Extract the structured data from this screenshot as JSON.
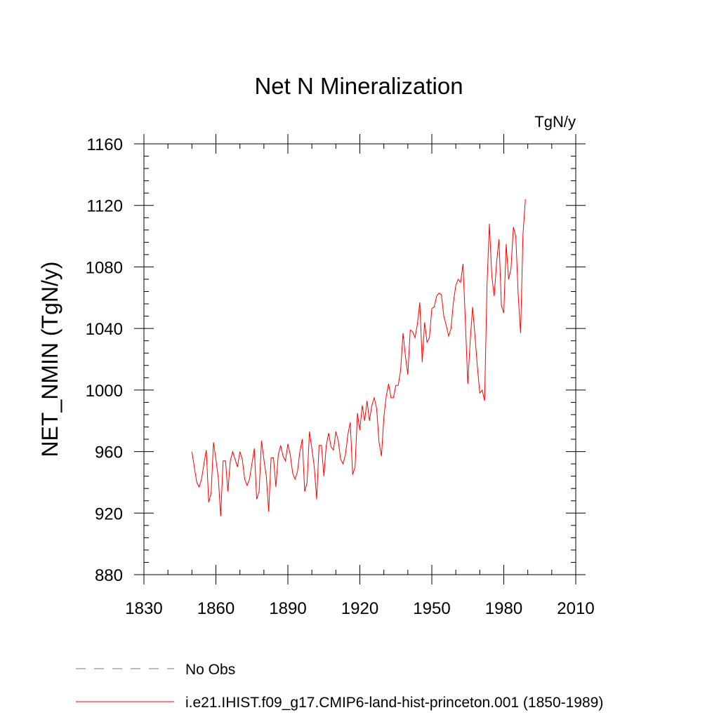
{
  "chart_data": {
    "type": "line",
    "title": "Net N Mineralization",
    "units_label": "TgN/y",
    "xlabel": "",
    "ylabel": "NET_NMIN  (TgN/y)",
    "xlim": [
      1830,
      2010
    ],
    "ylim": [
      880,
      1160
    ],
    "x_ticks": [
      1830,
      1860,
      1890,
      1920,
      1950,
      1980,
      2010
    ],
    "y_ticks": [
      880,
      920,
      960,
      1000,
      1040,
      1080,
      1120,
      1160
    ],
    "x_minor_step": 10,
    "y_minor_step": 8,
    "grid": false,
    "legend_position": "bottom-left",
    "series": [
      {
        "name": "No Obs",
        "color": "#7f6fb0",
        "style": "dashed",
        "x": [],
        "values": []
      },
      {
        "name": "i.e21.IHIST.f09_g17.CMIP6-land-hist-princeton.001 (1850-1989)",
        "color": "#ff0000",
        "style": "solid",
        "x_start": 1850,
        "x_step": 1,
        "values": [
          960,
          950,
          940,
          937,
          942,
          952,
          961,
          927,
          933,
          966,
          955,
          943,
          918,
          954,
          954,
          934,
          954,
          960,
          955,
          950,
          960,
          955,
          942,
          938,
          942,
          952,
          962,
          929,
          934,
          967,
          955,
          944,
          921,
          956,
          956,
          937,
          958,
          964,
          957,
          954,
          965,
          958,
          946,
          942,
          947,
          960,
          968,
          934,
          940,
          973,
          962,
          950,
          929,
          964,
          964,
          944,
          964,
          972,
          963,
          961,
          973,
          967,
          955,
          952,
          958,
          971,
          979,
          945,
          950,
          985,
          974,
          990,
          980,
          993,
          980,
          990,
          995,
          988,
          966,
          957,
          982,
          996,
          1004,
          995,
          995,
          1003,
          1003,
          1013,
          1037,
          1022,
          1010,
          1039,
          1038,
          1034,
          1043,
          1057,
          1018,
          1044,
          1031,
          1034,
          1053,
          1054,
          1061,
          1063,
          1062,
          1048,
          1042,
          1035,
          1040,
          1057,
          1068,
          1072,
          1070,
          1082,
          1044,
          1004,
          1032,
          1054,
          1035,
          1015,
          998,
          1000,
          993,
          1068,
          1108,
          1074,
          1061,
          1083,
          1098,
          1055,
          1050,
          1095,
          1072,
          1079,
          1106,
          1100,
          1062,
          1037,
          1101,
          1124
        ]
      }
    ]
  }
}
